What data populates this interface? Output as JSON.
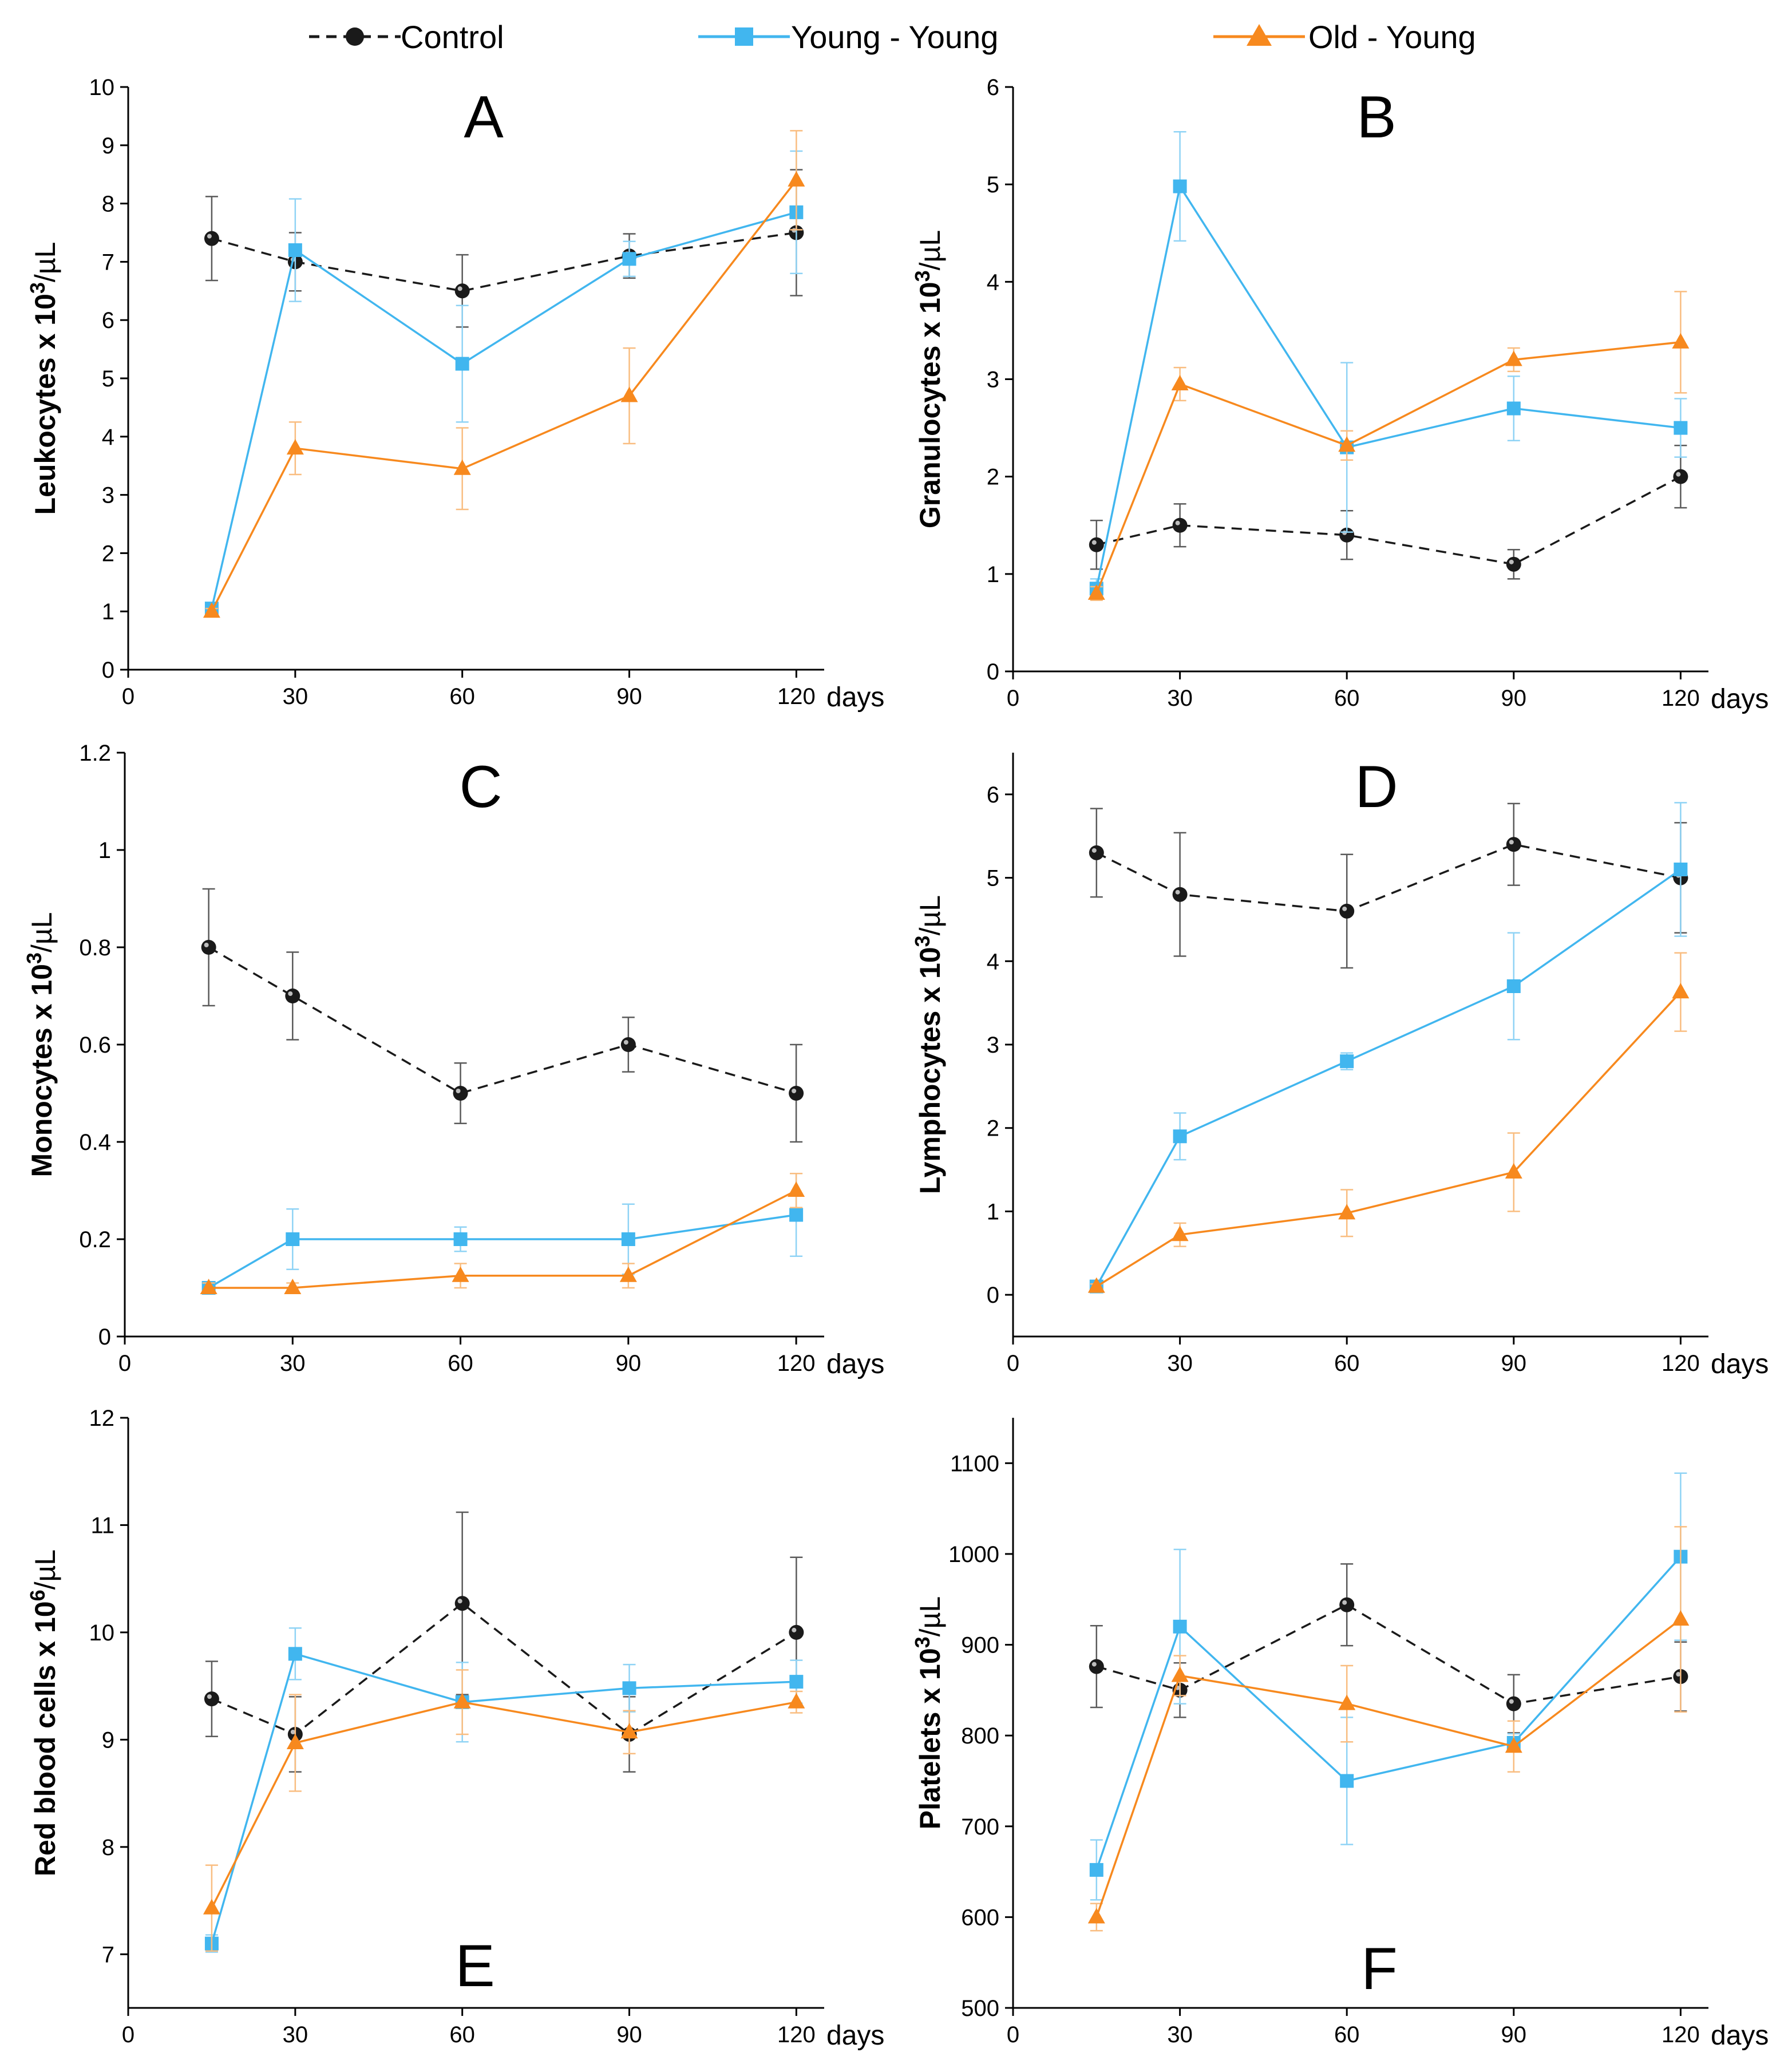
{
  "legend": {
    "items": [
      {
        "name": "Control",
        "color": "#1a1a1a",
        "marker": "circle",
        "dash": true
      },
      {
        "name": "Young - Young",
        "color": "#41b6ef",
        "marker": "square",
        "dash": false
      },
      {
        "name": "Old - Young",
        "color": "#f7891e",
        "marker": "triangle",
        "dash": false
      }
    ]
  },
  "chart_data": [
    {
      "panel": "A",
      "type": "line",
      "ylabel_main": "Leukocytes x 10",
      "ylabel_sup": "3",
      "ylabel_unit": "/µL",
      "xlabel": "days",
      "x": [
        15,
        30,
        60,
        90,
        120
      ],
      "xticks": [
        0,
        30,
        60,
        90,
        120
      ],
      "xlim": [
        0,
        125
      ],
      "ylim": [
        0,
        10
      ],
      "yticks": [
        0,
        1,
        2,
        3,
        4,
        5,
        6,
        7,
        8,
        9,
        10
      ],
      "ytick_labels": [
        "0",
        "1",
        "2",
        "3",
        "4",
        "5",
        "6",
        "7",
        "8",
        "9",
        "10"
      ],
      "series": [
        {
          "name": "Control",
          "values": [
            7.4,
            7.0,
            6.5,
            7.1,
            7.5
          ],
          "errors": [
            0.72,
            0.5,
            0.62,
            0.38,
            1.08
          ]
        },
        {
          "name": "Young - Young",
          "values": [
            1.05,
            7.2,
            5.25,
            7.05,
            7.85
          ],
          "errors": [
            0.05,
            0.88,
            1.0,
            0.3,
            1.05
          ]
        },
        {
          "name": "Old - Young",
          "values": [
            1.0,
            3.8,
            3.45,
            4.7,
            8.4
          ],
          "errors": [
            0.05,
            0.45,
            0.7,
            0.82,
            0.85
          ]
        }
      ]
    },
    {
      "panel": "B",
      "type": "line",
      "ylabel_main": "Granulocytes x 10",
      "ylabel_sup": "3",
      "ylabel_unit": "/µL",
      "xlabel": "days",
      "x": [
        15,
        30,
        60,
        90,
        120
      ],
      "xticks": [
        0,
        30,
        60,
        90,
        120
      ],
      "xlim": [
        0,
        125
      ],
      "ylim": [
        0,
        6
      ],
      "yticks": [
        0,
        1,
        2,
        3,
        4,
        5,
        6
      ],
      "ytick_labels": [
        "0",
        "1",
        "2",
        "3",
        "4",
        "5",
        "6"
      ],
      "series": [
        {
          "name": "Control",
          "values": [
            1.3,
            1.5,
            1.4,
            1.1,
            2.0
          ],
          "errors": [
            0.25,
            0.22,
            0.25,
            0.15,
            0.32
          ]
        },
        {
          "name": "Young - Young",
          "values": [
            0.85,
            4.98,
            2.3,
            2.7,
            2.5
          ],
          "errors": [
            0.1,
            0.56,
            0.87,
            0.33,
            0.3
          ]
        },
        {
          "name": "Old - Young",
          "values": [
            0.8,
            2.95,
            2.32,
            3.2,
            3.38
          ],
          "errors": [
            0.07,
            0.17,
            0.15,
            0.12,
            0.52
          ]
        }
      ]
    },
    {
      "panel": "C",
      "type": "line",
      "ylabel_main": "Monocytes x 10",
      "ylabel_sup": "3",
      "ylabel_unit": "/µL",
      "xlabel": "days",
      "x": [
        15,
        30,
        60,
        90,
        120
      ],
      "xticks": [
        0,
        30,
        60,
        90,
        120
      ],
      "xlim": [
        0,
        125
      ],
      "ylim": [
        0,
        1.2
      ],
      "yticks": [
        0,
        0.2,
        0.4,
        0.6,
        0.8,
        1.0,
        1.2
      ],
      "ytick_labels": [
        "0",
        "0.2",
        "0.4",
        "0.6",
        "0.8",
        "1",
        "1.2"
      ],
      "series": [
        {
          "name": "Control",
          "values": [
            0.8,
            0.7,
            0.5,
            0.6,
            0.5
          ],
          "errors": [
            0.12,
            0.09,
            0.062,
            0.056,
            0.1
          ]
        },
        {
          "name": "Young - Young",
          "values": [
            0.1,
            0.2,
            0.2,
            0.2,
            0.25
          ],
          "errors": [
            0.012,
            0.062,
            0.025,
            0.072,
            0.085
          ]
        },
        {
          "name": "Old - Young",
          "values": [
            0.1,
            0.1,
            0.125,
            0.125,
            0.3
          ],
          "errors": [
            0.01,
            0.01,
            0.025,
            0.025,
            0.035
          ]
        }
      ]
    },
    {
      "panel": "D",
      "type": "line",
      "ylabel_main": "Lymphocytes x 10",
      "ylabel_sup": "3",
      "ylabel_unit": "/µL",
      "xlabel": "days",
      "x": [
        15,
        30,
        60,
        90,
        120
      ],
      "xticks": [
        0,
        30,
        60,
        90,
        120
      ],
      "xlim": [
        0,
        125
      ],
      "ylim": [
        -0.5,
        6.5
      ],
      "yticks": [
        0,
        1,
        2,
        3,
        4,
        5,
        6
      ],
      "ytick_labels": [
        "0",
        "1",
        "2",
        "3",
        "4",
        "5",
        "6"
      ],
      "series": [
        {
          "name": "Control",
          "values": [
            5.3,
            4.8,
            4.6,
            5.4,
            5.0
          ],
          "errors": [
            0.53,
            0.74,
            0.68,
            0.49,
            0.66
          ]
        },
        {
          "name": "Young - Young",
          "values": [
            0.1,
            1.9,
            2.8,
            3.7,
            5.1
          ],
          "errors": [
            0.03,
            0.28,
            0.1,
            0.64,
            0.8
          ]
        },
        {
          "name": "Old - Young",
          "values": [
            0.1,
            0.72,
            0.98,
            1.47,
            3.63
          ],
          "errors": [
            0.03,
            0.14,
            0.28,
            0.47,
            0.47
          ]
        }
      ]
    },
    {
      "panel": "E",
      "type": "line",
      "ylabel_main": "Red blood cells x 10",
      "ylabel_sup": "6",
      "ylabel_unit": "/µL",
      "xlabel": "days",
      "x": [
        15,
        30,
        60,
        90,
        120
      ],
      "xticks": [
        0,
        30,
        60,
        90,
        120
      ],
      "xlim": [
        0,
        125
      ],
      "ylim": [
        6.5,
        12
      ],
      "yticks": [
        7,
        8,
        9,
        10,
        11,
        12
      ],
      "ytick_labels": [
        "7",
        "8",
        "9",
        "10",
        "11",
        "12"
      ],
      "series": [
        {
          "name": "Control",
          "values": [
            9.38,
            9.05,
            10.27,
            9.05,
            10.0
          ],
          "errors": [
            0.35,
            0.35,
            0.85,
            0.35,
            0.7
          ]
        },
        {
          "name": "Young - Young",
          "values": [
            7.1,
            9.8,
            9.35,
            9.48,
            9.54
          ],
          "errors": [
            0.08,
            0.24,
            0.37,
            0.22,
            0.2
          ]
        },
        {
          "name": "Old - Young",
          "values": [
            7.43,
            8.97,
            9.35,
            9.07,
            9.35
          ],
          "errors": [
            0.4,
            0.45,
            0.3,
            0.2,
            0.1
          ]
        }
      ]
    },
    {
      "panel": "F",
      "type": "line",
      "ylabel_main": "Platelets x 10",
      "ylabel_sup": "3",
      "ylabel_unit": "/µL",
      "xlabel": "days",
      "x": [
        15,
        30,
        60,
        90,
        120
      ],
      "xticks": [
        0,
        30,
        60,
        90,
        120
      ],
      "xlim": [
        0,
        125
      ],
      "ylim": [
        500,
        1150
      ],
      "yticks": [
        500,
        600,
        700,
        800,
        900,
        1000,
        1100
      ],
      "ytick_labels": [
        "500",
        "600",
        "700",
        "800",
        "900",
        "1000",
        "1100"
      ],
      "series": [
        {
          "name": "Control",
          "values": [
            876,
            850,
            944,
            835,
            865
          ],
          "errors": [
            45,
            30,
            45,
            32,
            38
          ]
        },
        {
          "name": "Young - Young",
          "values": [
            652,
            920,
            750,
            792,
            997
          ],
          "errors": [
            33,
            85,
            70,
            10,
            92
          ]
        },
        {
          "name": "Old - Young",
          "values": [
            600,
            866,
            835,
            788,
            928
          ],
          "errors": [
            15,
            22,
            42,
            28,
            102
          ]
        }
      ]
    }
  ]
}
